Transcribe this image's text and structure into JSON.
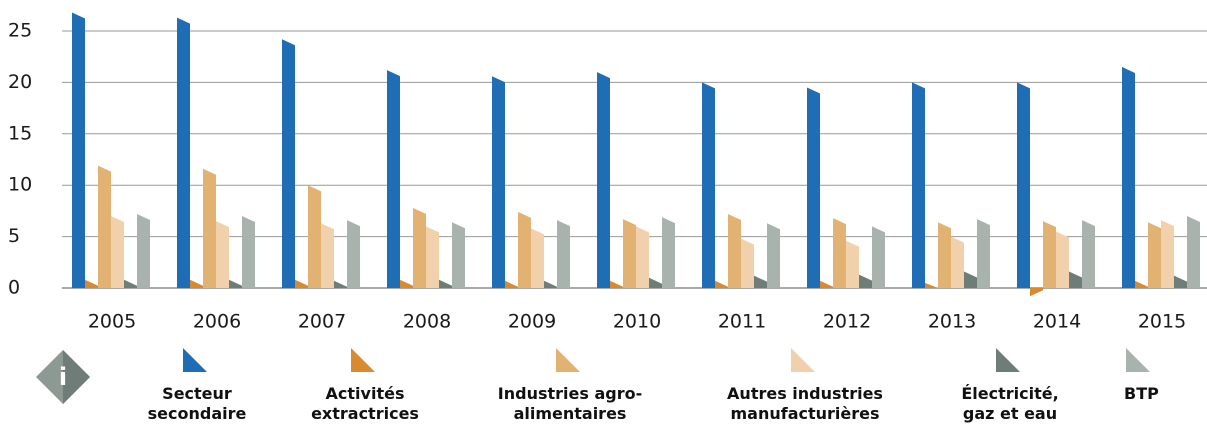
{
  "chart_data": {
    "type": "bar",
    "categories": [
      "2005",
      "2006",
      "2007",
      "2008",
      "2009",
      "2010",
      "2011",
      "2012",
      "2013",
      "2014",
      "2015"
    ],
    "series": [
      {
        "name": "Secteur secondaire",
        "color": "#1f6db5",
        "values": [
          26.8,
          26.3,
          24.2,
          21.2,
          20.6,
          21.0,
          20.0,
          19.5,
          20.0,
          20.0,
          21.5
        ]
      },
      {
        "name": "Activités extractrices",
        "color": "#d98a2f",
        "values": [
          0.8,
          0.8,
          0.8,
          0.8,
          0.7,
          0.7,
          0.7,
          0.7,
          0.5,
          -0.8,
          0.7
        ]
      },
      {
        "name": "Industries agro-alimentaires",
        "color": "#e2b273",
        "values": [
          11.9,
          11.6,
          10.0,
          7.8,
          7.4,
          6.7,
          7.2,
          6.8,
          6.4,
          6.5,
          6.4
        ]
      },
      {
        "name": "Autres industries manufacturières",
        "color": "#f1d1ac",
        "values": [
          7.0,
          6.5,
          6.3,
          6.0,
          5.8,
          6.0,
          4.8,
          4.6,
          5.0,
          5.5,
          6.6
        ]
      },
      {
        "name": "Électricité, gaz et eau",
        "color": "#6f7d78",
        "values": [
          0.8,
          0.8,
          0.7,
          0.8,
          0.7,
          1.0,
          1.2,
          1.3,
          1.6,
          1.6,
          1.2
        ]
      },
      {
        "name": "BTP",
        "color": "#a9b3ae",
        "values": [
          7.2,
          7.0,
          6.6,
          6.4,
          6.6,
          6.9,
          6.3,
          6.0,
          6.7,
          6.6,
          7.0
        ]
      }
    ],
    "ylim": [
      -1,
      27
    ],
    "yticks": [
      0,
      5,
      10,
      15,
      20,
      25
    ],
    "grid": true
  }
}
